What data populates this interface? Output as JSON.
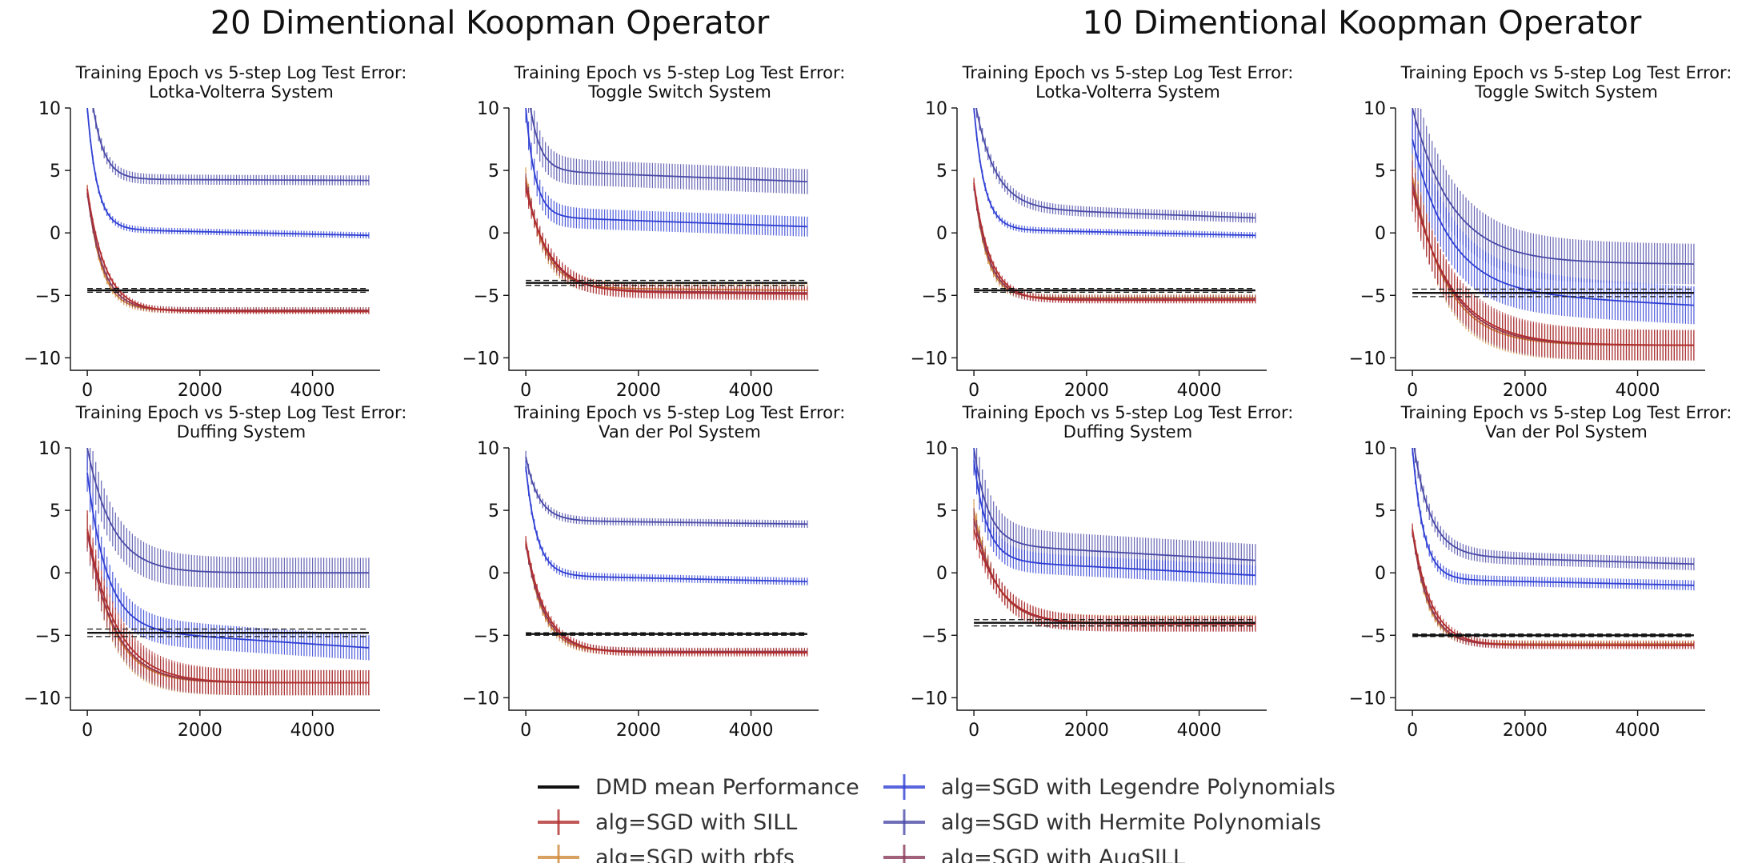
{
  "figure": {
    "left_title": "20 Dimentional Koopman Operator",
    "right_title": "10 Dimentional Koopman Operator",
    "legend": [
      {
        "key": "dmd",
        "label": "DMD mean Performance",
        "color": "#111111",
        "style": "line"
      },
      {
        "key": "sill",
        "label": "alg=SGD with SILL",
        "color": "#b22e2e",
        "style": "errorbar"
      },
      {
        "key": "rbf",
        "label": "alg=SGD with rbfs",
        "color": "#cf8a3a",
        "style": "errorbar"
      },
      {
        "key": "legendre",
        "label": "alg=SGD with Legendre Polynomials",
        "color": "#2f3fd4",
        "style": "errorbar"
      },
      {
        "key": "hermite",
        "label": "alg=SGD with Hermite Polynomials",
        "color": "#4a4aa8",
        "style": "errorbar"
      },
      {
        "key": "augsill",
        "label": "alg=SGD with AugSILL",
        "color": "#8a3a5a",
        "style": "errorbar"
      }
    ]
  },
  "chart_data": [
    {
      "type": "line",
      "group": "20D",
      "title": [
        "Training Epoch vs 5-step Log Test Error:",
        "Lotka-Volterra System"
      ],
      "xlim": [
        -300,
        5200
      ],
      "ylim": [
        -11,
        10
      ],
      "xticks": [
        0,
        2000,
        4000
      ],
      "xtick_labels": [
        "0",
        "2000",
        "4000"
      ],
      "yticks": [
        10,
        5,
        0,
        -5,
        -10
      ],
      "ytick_labels": [
        "10",
        "5",
        "0",
        "−5",
        "−10"
      ],
      "dmd": {
        "mean": -4.6,
        "band": 0.15
      },
      "series": [
        {
          "key": "hermite",
          "start": 14,
          "plateau": 4.3,
          "tau": 200,
          "slope": -0.1,
          "err": 0.4
        },
        {
          "key": "legendre",
          "start": 10,
          "plateau": 0.3,
          "tau": 180,
          "slope": -0.5,
          "err": 0.25
        },
        {
          "key": "rbf",
          "start": 3.5,
          "plateau": -6.2,
          "tau": 250,
          "slope": 0,
          "err": 0.25
        },
        {
          "key": "augsill",
          "start": 3.2,
          "plateau": -6.2,
          "tau": 280,
          "slope": 0,
          "err": 0.25
        },
        {
          "key": "sill",
          "start": 3.5,
          "plateau": -6.3,
          "tau": 320,
          "slope": 0,
          "err": 0.2
        }
      ]
    },
    {
      "type": "line",
      "group": "20D",
      "title": [
        "Training Epoch vs 5-step Log Test Error:",
        "Toggle Switch System"
      ],
      "xlim": [
        -300,
        5200
      ],
      "ylim": [
        -11,
        10
      ],
      "xticks": [
        0,
        2000,
        4000
      ],
      "xtick_labels": [
        "0",
        "2000",
        "4000"
      ],
      "yticks": [
        10,
        5,
        0,
        -5,
        -10
      ],
      "ytick_labels": [
        "10",
        "5",
        "0",
        "−5",
        "−10"
      ],
      "dmd": {
        "mean": -4.0,
        "band": 0.2
      },
      "series": [
        {
          "key": "hermite",
          "start": 13,
          "plateau": 5.0,
          "tau": 180,
          "slope": -0.9,
          "err": 1.0
        },
        {
          "key": "legendre",
          "start": 10,
          "plateau": 1.3,
          "tau": 170,
          "slope": -0.8,
          "err": 0.8
        },
        {
          "key": "rbf",
          "start": 4.5,
          "plateau": -4.4,
          "tau": 320,
          "slope": -0.2,
          "err": 0.5
        },
        {
          "key": "augsill",
          "start": 4.0,
          "plateau": -4.6,
          "tau": 380,
          "slope": -0.2,
          "err": 0.5
        },
        {
          "key": "sill",
          "start": 3.6,
          "plateau": -4.7,
          "tau": 420,
          "slope": -0.2,
          "err": 0.5
        }
      ]
    },
    {
      "type": "line",
      "group": "10D",
      "title": [
        "Training Epoch vs 5-step Log Test Error:",
        "Lotka-Volterra System"
      ],
      "xlim": [
        -300,
        5200
      ],
      "ylim": [
        -11,
        10
      ],
      "xticks": [
        0,
        2000,
        4000
      ],
      "xtick_labels": [
        "0",
        "2000",
        "4000"
      ],
      "yticks": [
        10,
        5,
        0,
        -5,
        -10
      ],
      "ytick_labels": [
        "10",
        "5",
        "0",
        "−5",
        "−10"
      ],
      "dmd": {
        "mean": -4.6,
        "band": 0.15
      },
      "series": [
        {
          "key": "hermite",
          "start": 11,
          "plateau": 2.0,
          "tau": 350,
          "slope": -0.8,
          "err": 0.4
        },
        {
          "key": "legendre",
          "start": 10,
          "plateau": 0.3,
          "tau": 190,
          "slope": -0.5,
          "err": 0.25
        },
        {
          "key": "rbf",
          "start": 4.0,
          "plateau": -5.2,
          "tau": 230,
          "slope": 0,
          "err": 0.3
        },
        {
          "key": "augsill",
          "start": 3.8,
          "plateau": -5.3,
          "tau": 260,
          "slope": 0,
          "err": 0.3
        },
        {
          "key": "sill",
          "start": 4.0,
          "plateau": -5.4,
          "tau": 290,
          "slope": 0,
          "err": 0.25
        }
      ]
    },
    {
      "type": "line",
      "group": "10D",
      "title": [
        "Training Epoch vs 5-step Log Test Error:",
        "Toggle Switch System"
      ],
      "xlim": [
        -300,
        5200
      ],
      "ylim": [
        -11,
        10
      ],
      "xticks": [
        0,
        2000,
        4000
      ],
      "xtick_labels": [
        "0",
        "2000",
        "4000"
      ],
      "yticks": [
        10,
        5,
        0,
        -5,
        -10
      ],
      "ytick_labels": [
        "10",
        "5",
        "0",
        "−5",
        "−10"
      ],
      "dmd": {
        "mean": -4.8,
        "band": 0.3
      },
      "series": [
        {
          "key": "hermite",
          "start": 10,
          "plateau": -2.3,
          "tau": 700,
          "slope": -0.2,
          "err": 1.6
        },
        {
          "key": "legendre",
          "start": 7.5,
          "plateau": -4.6,
          "tau": 650,
          "slope": -1.2,
          "err": 1.5
        },
        {
          "key": "rbf",
          "start": 4.5,
          "plateau": -9.0,
          "tau": 600,
          "slope": 0,
          "err": 1.2
        },
        {
          "key": "augsill",
          "start": 4.0,
          "plateau": -9.0,
          "tau": 650,
          "slope": 0,
          "err": 1.2
        },
        {
          "key": "sill",
          "start": 3.5,
          "plateau": -9.0,
          "tau": 700,
          "slope": 0,
          "err": 1.2
        }
      ]
    },
    {
      "type": "line",
      "group": "20D",
      "title": [
        "Training Epoch vs 5-step Log Test Error:",
        "Duffing System"
      ],
      "xlim": [
        -300,
        5200
      ],
      "ylim": [
        -11,
        10
      ],
      "xticks": [
        0,
        2000,
        4000
      ],
      "xtick_labels": [
        "0",
        "2000",
        "4000"
      ],
      "yticks": [
        10,
        5,
        0,
        -5,
        -10
      ],
      "ytick_labels": [
        "10",
        "5",
        "0",
        "−5",
        "−10"
      ],
      "dmd": {
        "mean": -4.8,
        "band": 0.3
      },
      "series": [
        {
          "key": "hermite",
          "start": 10,
          "plateau": 0.0,
          "tau": 450,
          "slope": 0,
          "err": 1.2
        },
        {
          "key": "legendre",
          "start": 8,
          "plateau": -4.5,
          "tau": 350,
          "slope": -1.5,
          "err": 1.0
        },
        {
          "key": "rbf",
          "start": 3.5,
          "plateau": -8.8,
          "tau": 450,
          "slope": 0,
          "err": 1.0
        },
        {
          "key": "augsill",
          "start": 3.2,
          "plateau": -8.8,
          "tau": 480,
          "slope": 0,
          "err": 1.0
        },
        {
          "key": "sill",
          "start": 3.5,
          "plateau": -8.8,
          "tau": 520,
          "slope": 0,
          "err": 1.0
        }
      ]
    },
    {
      "type": "line",
      "group": "20D",
      "title": [
        "Training Epoch vs 5-step Log Test Error:",
        "Van der Pol System"
      ],
      "xlim": [
        -300,
        5200
      ],
      "ylim": [
        -11,
        10
      ],
      "xticks": [
        0,
        2000,
        4000
      ],
      "xtick_labels": [
        "0",
        "2000",
        "4000"
      ],
      "yticks": [
        10,
        5,
        0,
        -5,
        -10
      ],
      "ytick_labels": [
        "10",
        "5",
        "0",
        "−5",
        "−10"
      ],
      "dmd": {
        "mean": -4.9,
        "band": 0.1
      },
      "series": [
        {
          "key": "hermite",
          "start": 9.3,
          "plateau": 4.2,
          "tau": 230,
          "slope": -0.3,
          "err": 0.3
        },
        {
          "key": "legendre",
          "start": 8.5,
          "plateau": -0.2,
          "tau": 200,
          "slope": -0.5,
          "err": 0.3
        },
        {
          "key": "rbf",
          "start": 2.5,
          "plateau": -6.3,
          "tau": 300,
          "slope": 0,
          "err": 0.3
        },
        {
          "key": "augsill",
          "start": 2.3,
          "plateau": -6.3,
          "tau": 330,
          "slope": 0,
          "err": 0.3
        },
        {
          "key": "sill",
          "start": 2.5,
          "plateau": -6.4,
          "tau": 360,
          "slope": 0,
          "err": 0.3
        }
      ]
    },
    {
      "type": "line",
      "group": "10D",
      "title": [
        "Training Epoch vs 5-step Log Test Error:",
        "Duffing System"
      ],
      "xlim": [
        -300,
        5200
      ],
      "ylim": [
        -11,
        10
      ],
      "xticks": [
        0,
        2000,
        4000
      ],
      "xtick_labels": [
        "0",
        "2000",
        "4000"
      ],
      "yticks": [
        10,
        5,
        0,
        -5,
        -10
      ],
      "ytick_labels": [
        "10",
        "5",
        "0",
        "−5",
        "−10"
      ],
      "dmd": {
        "mean": -4.0,
        "band": 0.25
      },
      "series": [
        {
          "key": "hermite",
          "start": 10,
          "plateau": 2.3,
          "tau": 250,
          "slope": -1.3,
          "err": 1.3
        },
        {
          "key": "legendre",
          "start": 9,
          "plateau": 1.0,
          "tau": 230,
          "slope": -1.2,
          "err": 0.8
        },
        {
          "key": "rbf",
          "start": 5.0,
          "plateau": -4.0,
          "tau": 380,
          "slope": 0,
          "err": 0.6
        },
        {
          "key": "augsill",
          "start": 4.3,
          "plateau": -4.1,
          "tau": 420,
          "slope": 0,
          "err": 0.6
        },
        {
          "key": "sill",
          "start": 3.5,
          "plateau": -4.1,
          "tau": 460,
          "slope": 0,
          "err": 0.6
        }
      ]
    },
    {
      "type": "line",
      "group": "10D",
      "title": [
        "Training Epoch vs 5-step Log Test Error:",
        "Van der Pol System"
      ],
      "xlim": [
        -300,
        5200
      ],
      "ylim": [
        -11,
        10
      ],
      "xticks": [
        0,
        2000,
        4000
      ],
      "xtick_labels": [
        "0",
        "2000",
        "4000"
      ],
      "yticks": [
        10,
        5,
        0,
        -5,
        -10
      ],
      "ytick_labels": [
        "10",
        "5",
        "0",
        "−5",
        "−10"
      ],
      "dmd": {
        "mean": -5.0,
        "band": 0.1
      },
      "series": [
        {
          "key": "hermite",
          "start": 11,
          "plateau": 1.4,
          "tau": 300,
          "slope": -0.7,
          "err": 0.5
        },
        {
          "key": "legendre",
          "start": 10,
          "plateau": -0.5,
          "tau": 200,
          "slope": -0.5,
          "err": 0.4
        },
        {
          "key": "rbf",
          "start": 3.5,
          "plateau": -5.7,
          "tau": 270,
          "slope": 0,
          "err": 0.3
        },
        {
          "key": "augsill",
          "start": 3.3,
          "plateau": -5.8,
          "tau": 300,
          "slope": 0,
          "err": 0.3
        },
        {
          "key": "sill",
          "start": 3.5,
          "plateau": -5.8,
          "tau": 330,
          "slope": 0,
          "err": 0.3
        }
      ]
    }
  ]
}
